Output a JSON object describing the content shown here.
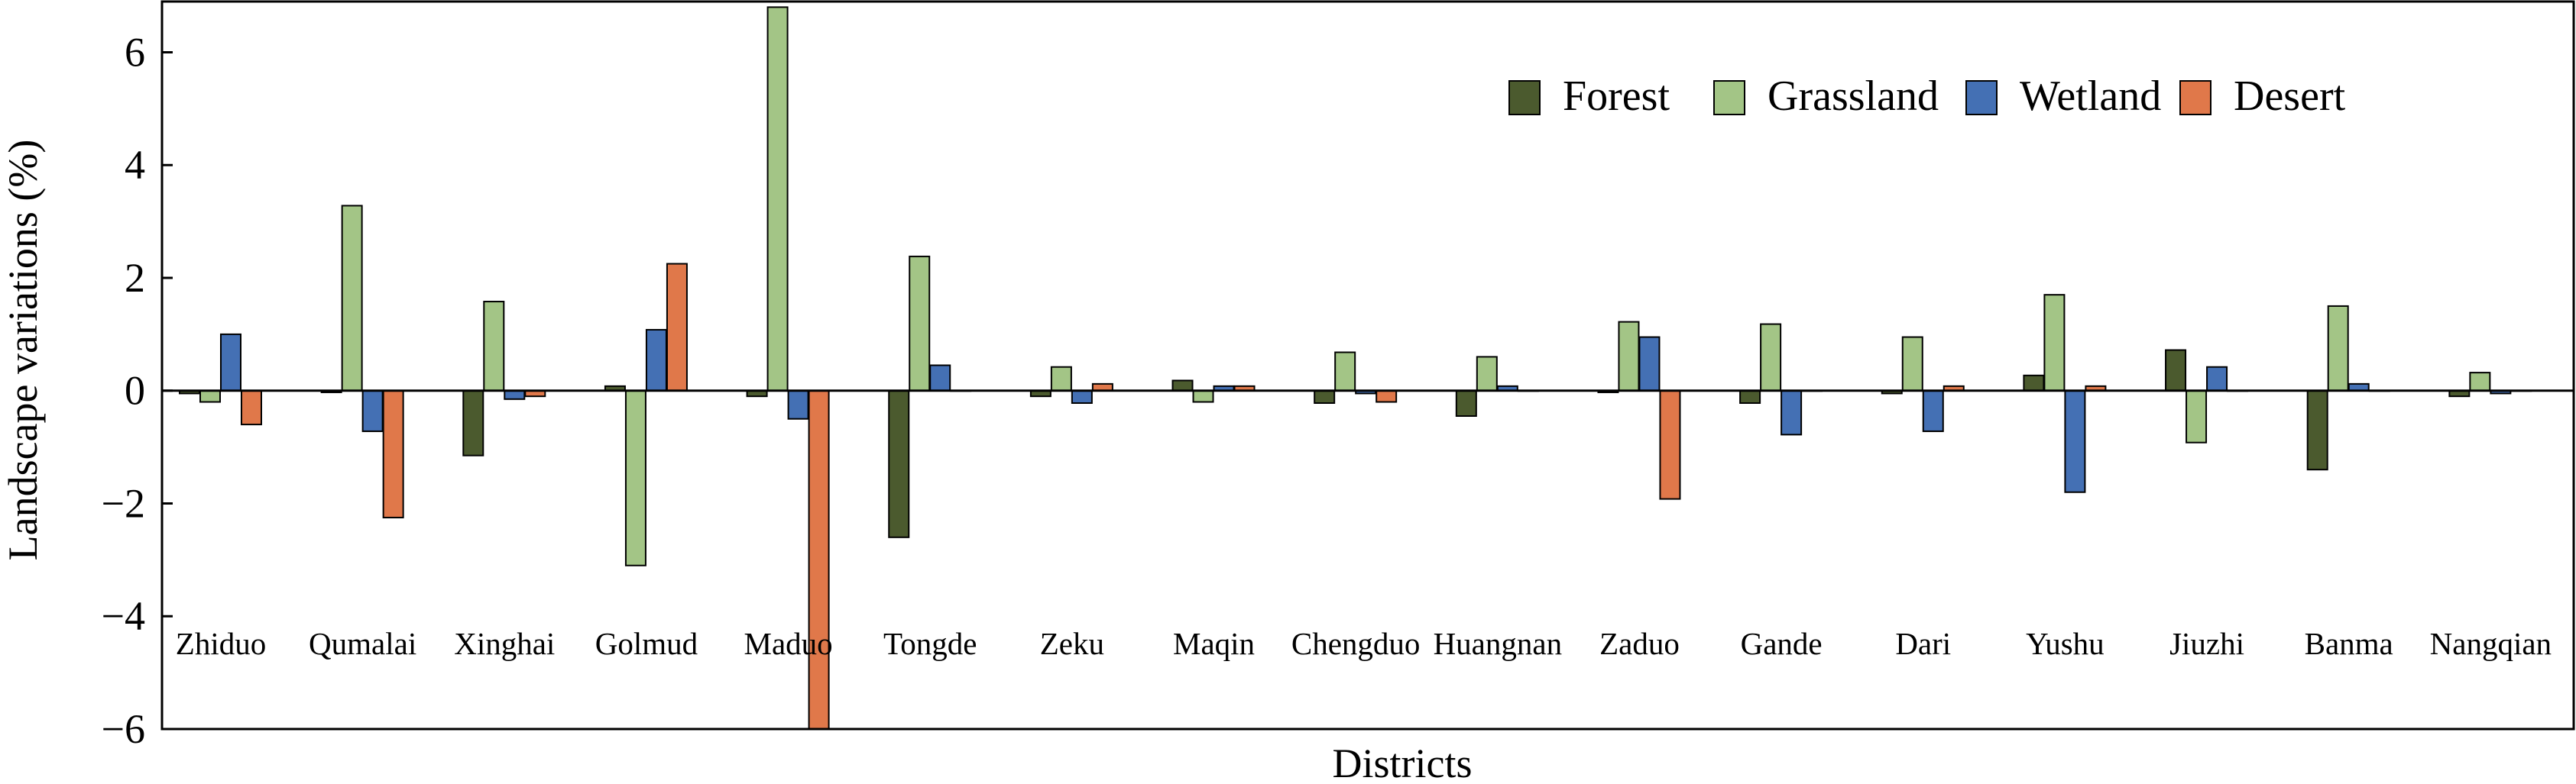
{
  "chart_data": {
    "type": "bar",
    "title": "",
    "xlabel": "Districts",
    "ylabel": "Landscape variations (%)",
    "ylim": [
      -6,
      6.9
    ],
    "yticks": [
      6,
      4,
      2,
      0,
      -2,
      -4,
      -6
    ],
    "ytick_labels": [
      "6",
      "4",
      "2",
      "0",
      "−2",
      "−4",
      "−6"
    ],
    "grid": false,
    "legend_position": "top-right",
    "categories": [
      "Zhiduo",
      "Qumalai",
      "Xinghai",
      "Golmud",
      "Maduo",
      "Tongde",
      "Zeku",
      "Maqin",
      "Chengduo",
      "Huangnan",
      "Zaduo",
      "Gande",
      "Dari",
      "Yushu",
      "Jiuzhi",
      "Banma",
      "Nangqian"
    ],
    "series": [
      {
        "name": "Forest",
        "color": "#4b5a2e",
        "values": [
          -0.05,
          -0.03,
          -1.15,
          0.08,
          -0.1,
          -2.6,
          -0.1,
          0.18,
          -0.22,
          -0.45,
          -0.03,
          -0.22,
          -0.05,
          0.27,
          0.72,
          -1.4,
          -0.1
        ]
      },
      {
        "name": "Grassland",
        "color": "#a3c586",
        "values": [
          -0.2,
          3.28,
          1.58,
          -3.1,
          6.8,
          2.38,
          0.42,
          -0.2,
          0.68,
          0.6,
          1.22,
          1.18,
          0.95,
          1.7,
          -0.92,
          1.5,
          0.32
        ]
      },
      {
        "name": "Wetland",
        "color": "#4470b4",
        "values": [
          1.0,
          -0.72,
          -0.15,
          1.08,
          -0.5,
          0.45,
          -0.22,
          0.08,
          -0.05,
          0.08,
          0.95,
          -0.78,
          -0.72,
          -1.8,
          0.42,
          0.12,
          -0.05
        ]
      },
      {
        "name": "Desert",
        "color": "#e0784a",
        "values": [
          -0.6,
          -2.25,
          -0.1,
          2.25,
          -6.0,
          0.0,
          0.12,
          0.08,
          -0.2,
          0.0,
          -1.92,
          0.0,
          0.08,
          0.08,
          0.0,
          0.0,
          0.0
        ]
      }
    ]
  }
}
